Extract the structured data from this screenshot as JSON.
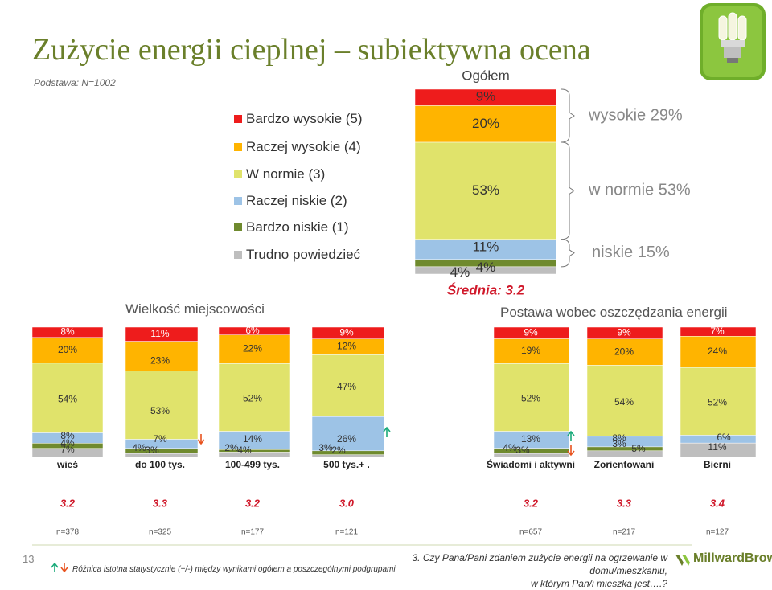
{
  "title": "Zużycie energii cieplnej – subiektywna ocena",
  "base_note": "Podstawa: N=1002",
  "legend": [
    {
      "label": "Bardzo wysokie (5)",
      "color": "#ee1c1c"
    },
    {
      "label": "Raczej wysokie (4)",
      "color": "#ffb400"
    },
    {
      "label": "W normie (3)",
      "color": "#e0e36b"
    },
    {
      "label": "Raczej niskie (2)",
      "color": "#9dc3e6"
    },
    {
      "label": "Bardzo niskie (1)",
      "color": "#6f8a2e"
    },
    {
      "label": "Trudno powiedzieć",
      "color": "#bebebe"
    }
  ],
  "sections": {
    "size": "Wielkość miejscowości",
    "attitude": "Postawa wobec oszczędzania energii"
  },
  "chart_data": [
    {
      "type": "bar",
      "stacked": true,
      "title": "Ogółem",
      "categories": [
        "Ogółem"
      ],
      "series": [
        {
          "name": "Bardzo wysokie (5)",
          "values": [
            9
          ]
        },
        {
          "name": "Raczej wysokie (4)",
          "values": [
            20
          ]
        },
        {
          "name": "W normie (3)",
          "values": [
            53
          ]
        },
        {
          "name": "Raczej niskie (2)",
          "values": [
            11
          ]
        },
        {
          "name": "Bardzo niskie (1)",
          "values": [
            4
          ]
        },
        {
          "name": "Trudno powiedzieć",
          "values": [
            4
          ]
        }
      ],
      "segment_labels": [
        "9%",
        "20%",
        "53%",
        "11%",
        "4%",
        "4%"
      ],
      "groups": [
        {
          "label": "wysokie 29%",
          "value": 29
        },
        {
          "label": "w normie 53%",
          "value": 53
        },
        {
          "label": "niskie 15%",
          "value": 15
        }
      ],
      "mean_label": "Średnia: 3.2"
    },
    {
      "type": "bar",
      "stacked": true,
      "categories": [
        "wieś",
        "do 100 tys.",
        "100-499 tys.",
        "500 tys.+ .",
        "Świadomi i aktywni",
        "Zorientowani",
        "Bierni"
      ],
      "series": [
        {
          "name": "Bardzo wysokie (5)",
          "values": [
            8,
            11,
            6,
            9,
            9,
            9,
            7
          ],
          "labels": [
            "8%",
            "11%",
            "6%",
            "9%",
            "9%",
            "9%",
            "7%"
          ]
        },
        {
          "name": "Raczej wysokie (4)",
          "values": [
            20,
            23,
            22,
            12,
            19,
            20,
            24
          ],
          "labels": [
            "20%",
            "23%",
            "22%",
            "12%",
            "19%",
            "20%",
            "24%"
          ]
        },
        {
          "name": "W normie (3)",
          "values": [
            54,
            53,
            52,
            47,
            52,
            54,
            52
          ],
          "labels": [
            "54%",
            "53%",
            "52%",
            "47%",
            "52%",
            "54%",
            "52%"
          ]
        },
        {
          "name": "Raczej niskie (2)",
          "values": [
            8,
            7,
            14,
            26,
            13,
            8,
            6
          ],
          "labels": [
            "8%",
            "7%",
            "14%",
            "26%",
            "13%",
            "8%",
            "6%"
          ]
        },
        {
          "name": "Bardzo niskie (1)",
          "values": [
            4,
            4,
            2,
            3,
            4,
            3,
            0
          ],
          "labels": [
            "4%",
            "4%",
            "2%",
            "3%",
            "4%",
            "3%",
            ""
          ]
        },
        {
          "name": "Trudno powiedzieć",
          "values": [
            7,
            3,
            4,
            2,
            3,
            5,
            11
          ],
          "labels": [
            "7%",
            "3%",
            "4%",
            "2%",
            "3%",
            "5%",
            "11%"
          ]
        }
      ],
      "means": [
        "3.2",
        "3.3",
        "3.2",
        "3.0",
        "3.2",
        "3.3",
        "3.4"
      ],
      "n": [
        "n=378",
        "n=325",
        "n=177",
        "n=121",
        "n=657",
        "n=217",
        "n=127"
      ],
      "significance": [
        {
          "after": 1,
          "arrow": "down"
        },
        {
          "after": 3,
          "arrow": "up"
        },
        {
          "after": 4,
          "arrow": "up"
        },
        {
          "after": 4,
          "arrow": "down"
        }
      ]
    }
  ],
  "footer": {
    "slide_number": "13",
    "footnote": "Różnica istotna statystycznie (+/-) między wynikami ogółem  a poszczególnymi podgrupami",
    "question_line1": "3. Czy Pana/Pani zdaniem zużycie energii na ogrzewanie w domu/mieszkaniu,",
    "question_line2": "w którym Pan/i mieszka jest….?",
    "brand": "MillwardBrown"
  },
  "colors": {
    "title": "#6a7f2a",
    "up_arrow": "#1aaa7a",
    "down_arrow": "#e8531f",
    "bracket": "#777777",
    "group_label": "#888888"
  }
}
